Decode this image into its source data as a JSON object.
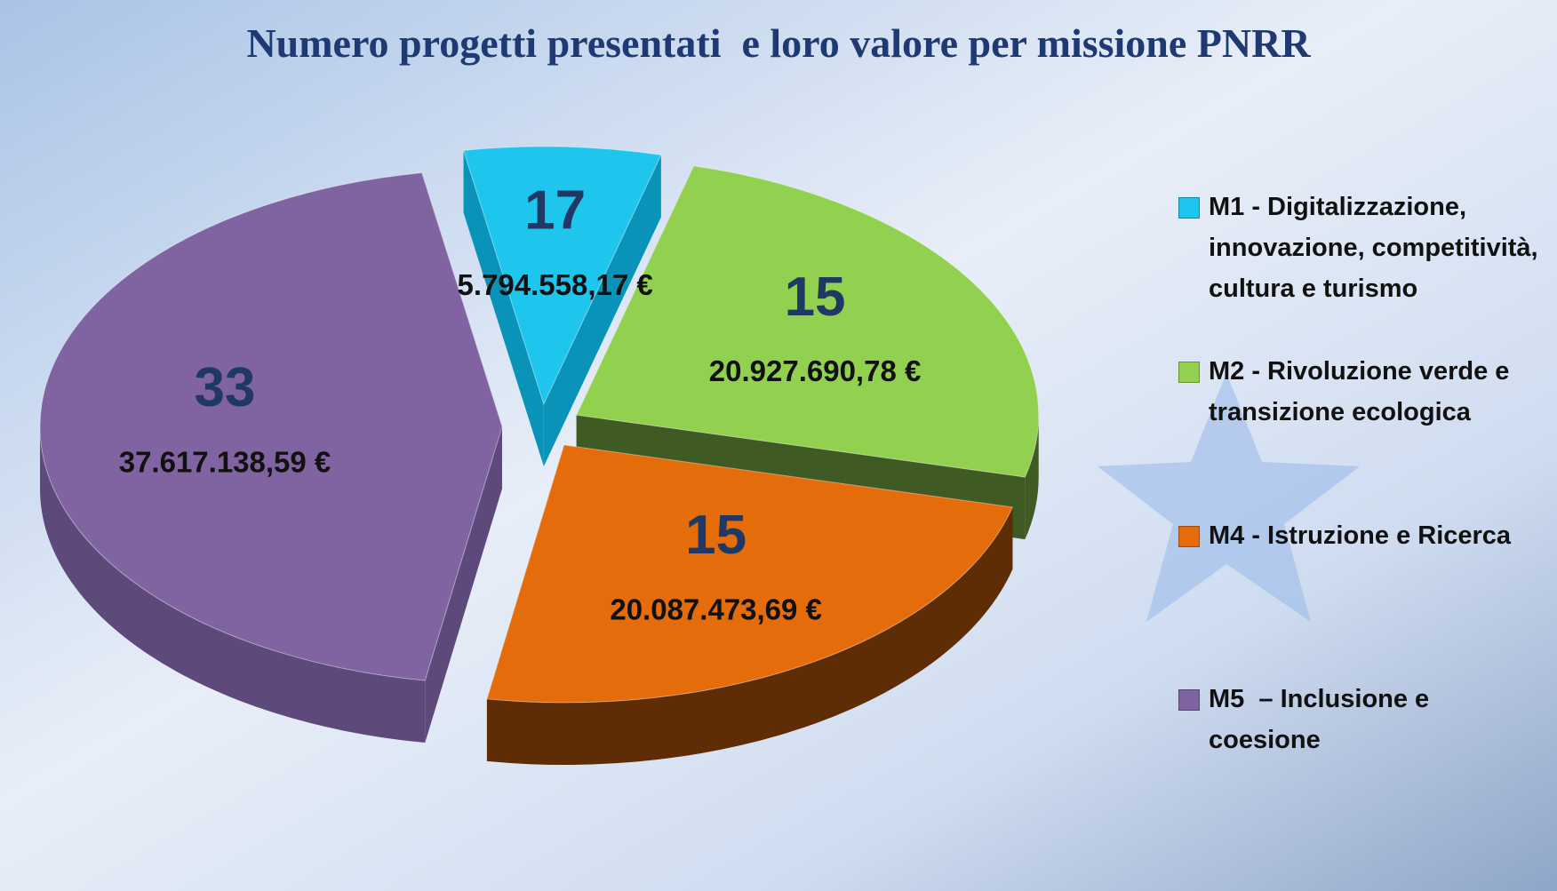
{
  "chart_data": {
    "type": "pie3d",
    "title": "Numero progetti presentati  e loro valore per missione PNRR",
    "categories": [
      "M1 - Digitalizzazione, innovazione, competitività, cultura e turismo",
      "M2 - Rivoluzione verde e transizione ecologica",
      "M4 - Istruzione e Ricerca",
      "M5  – Inclusione e coesione"
    ],
    "values": [
      5794558.17,
      20927690.78,
      20087473.69,
      37617138.59
    ],
    "value_labels": [
      "5.794.558,17 €",
      "20.927.690,78 €",
      "20.087.473,69 €",
      "37.617.138,59 €"
    ],
    "counts": [
      17,
      15,
      15,
      33
    ],
    "colors": [
      "#1ec6ee",
      "#92d050",
      "#e46c0a",
      "#8064a2"
    ],
    "side_colors": [
      "#0a93b8",
      "#3f5a22",
      "#5e2c05",
      "#5d4a7a"
    ]
  }
}
